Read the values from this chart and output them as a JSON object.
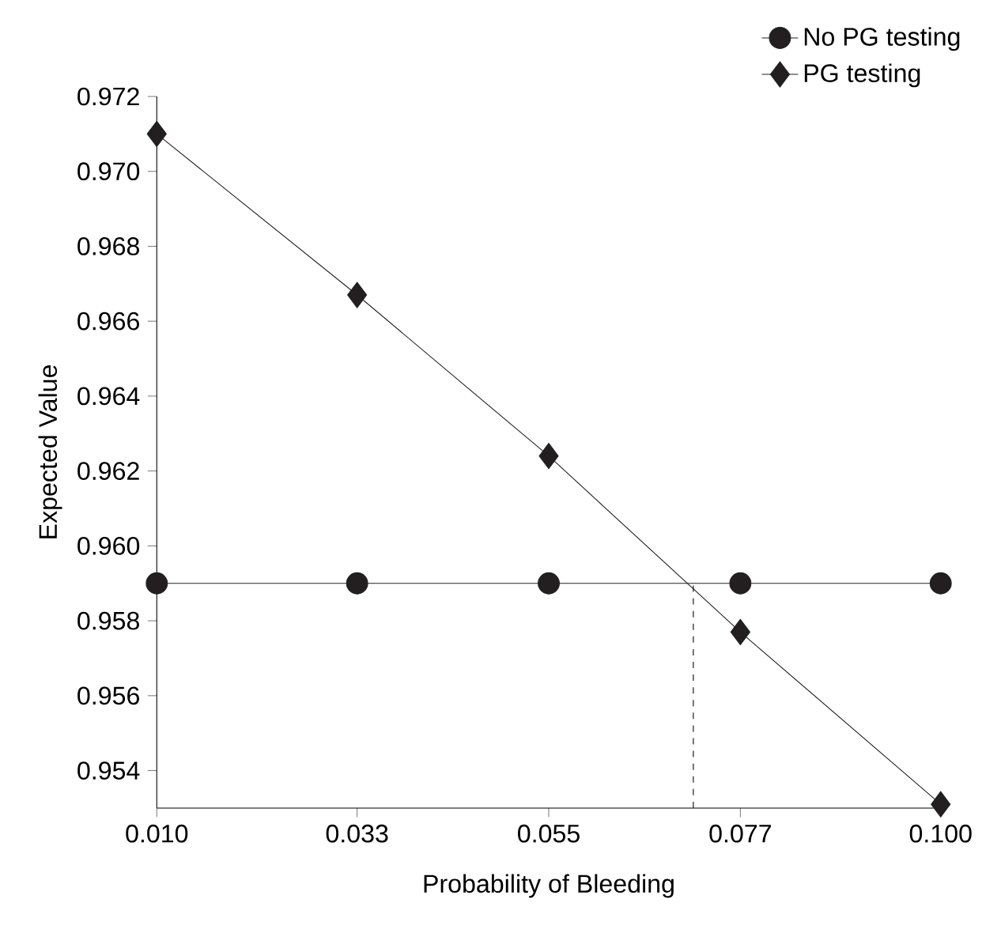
{
  "chart_data": {
    "type": "line",
    "xlabel": "Probability of Bleeding",
    "ylabel": "Expected Value",
    "x": [
      0.01,
      0.033,
      0.055,
      0.077,
      0.1
    ],
    "xlim": [
      0.01,
      0.1
    ],
    "xticks": [
      {
        "value": 0.01,
        "label": "0.010"
      },
      {
        "value": 0.033,
        "label": "0.033"
      },
      {
        "value": 0.055,
        "label": "0.055"
      },
      {
        "value": 0.077,
        "label": "0.077"
      },
      {
        "value": 0.1,
        "label": "0.100"
      }
    ],
    "ylim": [
      0.953,
      0.972
    ],
    "yticks": [
      {
        "value": 0.954,
        "label": "0.954"
      },
      {
        "value": 0.956,
        "label": "0.956"
      },
      {
        "value": 0.958,
        "label": "0.958"
      },
      {
        "value": 0.96,
        "label": "0.960"
      },
      {
        "value": 0.962,
        "label": "0.962"
      },
      {
        "value": 0.964,
        "label": "0.964"
      },
      {
        "value": 0.966,
        "label": "0.966"
      },
      {
        "value": 0.968,
        "label": "0.968"
      },
      {
        "value": 0.97,
        "label": "0.970"
      },
      {
        "value": 0.972,
        "label": "0.972"
      }
    ],
    "series": [
      {
        "name": "No PG testing",
        "color": "#231f20",
        "marker": "circle",
        "values": [
          0.959,
          0.959,
          0.959,
          0.959,
          0.959
        ]
      },
      {
        "name": "PG testing",
        "color": "#231f20",
        "marker": "diamond",
        "values": [
          0.971,
          0.9667,
          0.9624,
          0.9577,
          0.9531
        ]
      }
    ],
    "ref_lines": [
      {
        "axis": "x",
        "value": 0.0716,
        "line_style": "dashed"
      }
    ],
    "grid": false,
    "legend": "top right"
  }
}
